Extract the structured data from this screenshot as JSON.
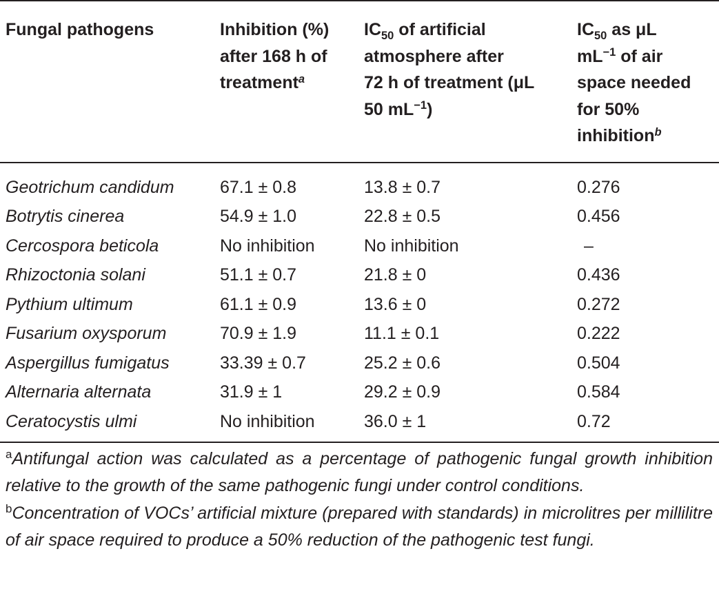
{
  "table": {
    "headers": {
      "col1": "Fungal pathogens",
      "col2_a": "Inhibition (%)",
      "col2_b": "after 168 h of",
      "col2_c": "treatment",
      "col2_sup": "a",
      "col3_a_pre": "IC",
      "col3_a_sub": "50",
      "col3_a_post": " of artificial",
      "col3_b": "atmosphere after",
      "col3_c": "72 h of treatment (μL",
      "col3_d_pre": "50 mL",
      "col3_d_sup": "−1",
      "col3_d_post": ")",
      "col4_a_pre": "IC",
      "col4_a_sub": "50",
      "col4_a_post": " as μL",
      "col4_b_pre": "mL",
      "col4_b_sup": "−1",
      "col4_b_post": " of air",
      "col4_c": "space needed",
      "col4_d": "for 50%",
      "col4_e": "inhibition",
      "col4_sup": "b"
    },
    "rows": [
      {
        "pathogen": "Geotrichum candidum",
        "inhibition": "67.1 ± 0.8",
        "ic50_atm": "13.8 ± 0.7",
        "ic50_air": "0.276"
      },
      {
        "pathogen": "Botrytis cinerea",
        "inhibition": "54.9 ± 1.0",
        "ic50_atm": "22.8 ± 0.5",
        "ic50_air": "0.456"
      },
      {
        "pathogen": "Cercospora beticola",
        "inhibition": "No inhibition",
        "ic50_atm": "No inhibition",
        "ic50_air": "–"
      },
      {
        "pathogen": "Rhizoctonia solani",
        "inhibition": "51.1 ± 0.7",
        "ic50_atm": "21.8 ± 0",
        "ic50_air": "0.436"
      },
      {
        "pathogen": "Pythium ultimum",
        "inhibition": "61.1 ± 0.9",
        "ic50_atm": "13.6 ± 0",
        "ic50_air": "0.272"
      },
      {
        "pathogen": "Fusarium oxysporum",
        "inhibition": "70.9 ± 1.9",
        "ic50_atm": "11.1 ± 0.1",
        "ic50_air": "0.222"
      },
      {
        "pathogen": "Aspergillus fumigatus",
        "inhibition": "33.39 ± 0.7",
        "ic50_atm": "25.2 ± 0.6",
        "ic50_air": "0.504"
      },
      {
        "pathogen": "Alternaria alternata",
        "inhibition": "31.9 ± 1",
        "ic50_atm": "29.2 ± 0.9",
        "ic50_air": "0.584"
      },
      {
        "pathogen": "Ceratocystis ulmi",
        "inhibition": "No inhibition",
        "ic50_atm": "36.0 ± 1",
        "ic50_air": "0.72"
      }
    ]
  },
  "footnotes": {
    "a_mark": "a",
    "a_text": "Antifungal action was calculated as a percentage of pathogenic fungal growth inhibition relative to the growth of the same pathogenic fungi under control conditions.",
    "b_mark": "b",
    "b_text": "Concentration of VOCs’ artificial mixture (prepared with standards) in microlitres per millilitre of air space required to produce a 50% reduction of the pathogenic test fungi."
  }
}
